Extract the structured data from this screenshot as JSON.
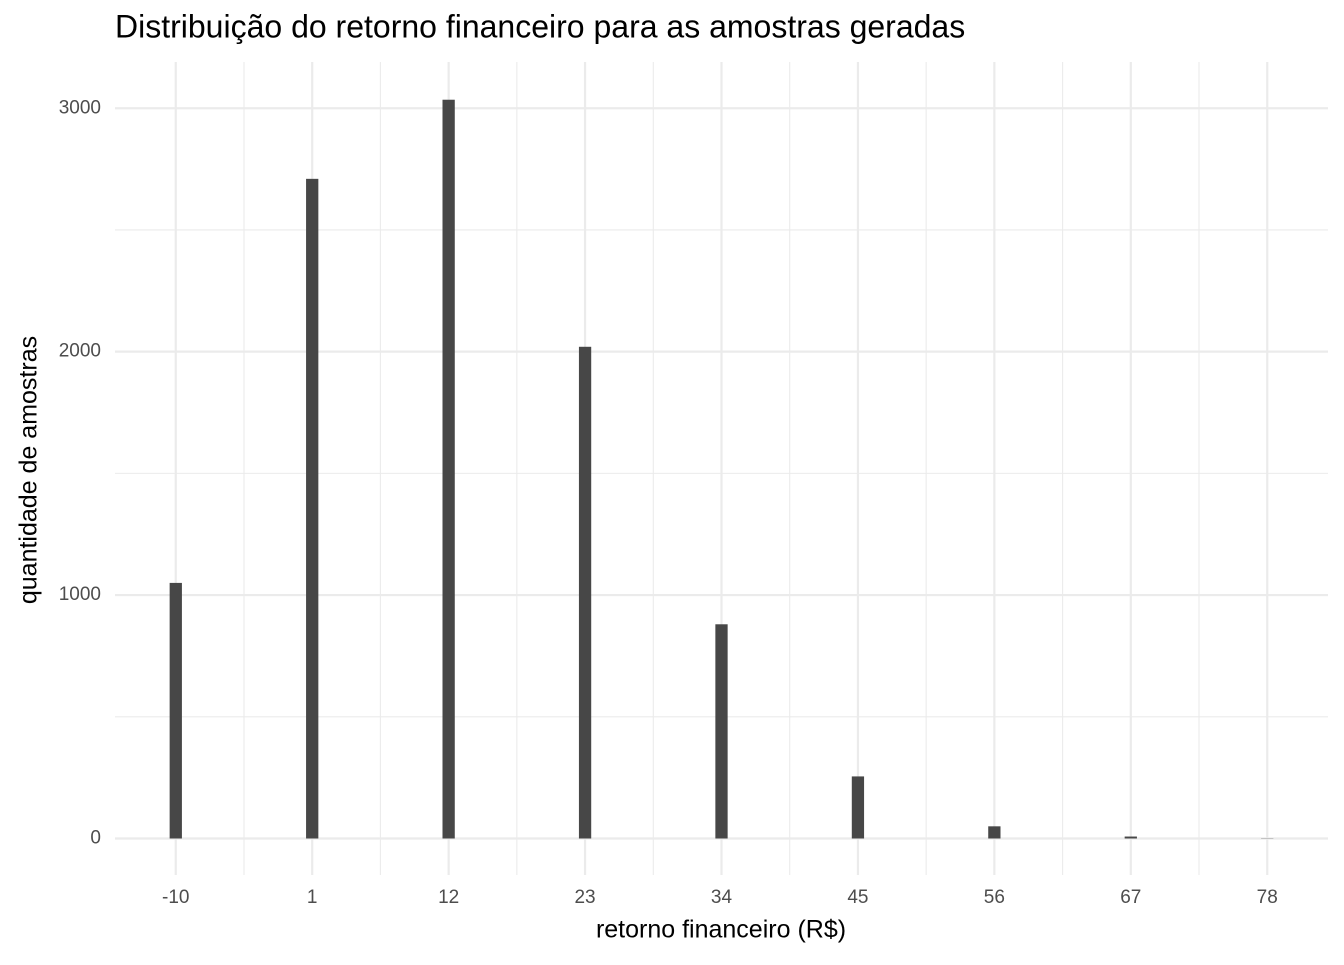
{
  "chart_data": {
    "type": "bar",
    "title": "Distribuição do retorno financeiro para as amostras geradas",
    "x_label": "retorno financeiro (R$)",
    "y_label": "quantidade de amostras",
    "x": [
      -10,
      1,
      12,
      23,
      34,
      45,
      56,
      67,
      78
    ],
    "values": [
      1050,
      2710,
      3035,
      2020,
      880,
      255,
      50,
      8,
      1
    ],
    "color": "#474747",
    "xlim": [
      -14.9,
      82.9
    ],
    "ylim": [
      -150,
      3190
    ],
    "xticks": [
      -10,
      1,
      12,
      23,
      34,
      45,
      56,
      67,
      78
    ],
    "yticks": [
      0,
      1000,
      2000,
      3000
    ],
    "grid": true
  }
}
